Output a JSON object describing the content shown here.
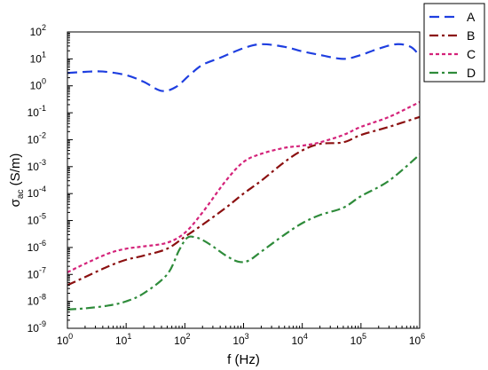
{
  "chart_data": {
    "type": "line",
    "title": "",
    "xlabel": "f (Hz)",
    "ylabel": {
      "base": "σ",
      "sub": "ac",
      "rest": " (S/m)"
    },
    "x_scale": "log",
    "y_scale": "log",
    "xlim": [
      1,
      1000000
    ],
    "ylim": [
      1e-09,
      100
    ],
    "x_ticks": [
      {
        "value": 1,
        "base": "10",
        "exp": "0"
      },
      {
        "value": 10,
        "base": "10",
        "exp": "1"
      },
      {
        "value": 100,
        "base": "10",
        "exp": "2"
      },
      {
        "value": 1000,
        "base": "10",
        "exp": "3"
      },
      {
        "value": 10000,
        "base": "10",
        "exp": "4"
      },
      {
        "value": 100000,
        "base": "10",
        "exp": "5"
      },
      {
        "value": 1000000,
        "base": "10",
        "exp": "6"
      }
    ],
    "y_ticks": [
      {
        "value": 1e-09,
        "base": "10",
        "exp": "-9"
      },
      {
        "value": 1e-08,
        "base": "10",
        "exp": "-8"
      },
      {
        "value": 1e-07,
        "base": "10",
        "exp": "-7"
      },
      {
        "value": 1e-06,
        "base": "10",
        "exp": "-6"
      },
      {
        "value": 1e-05,
        "base": "10",
        "exp": "-5"
      },
      {
        "value": 0.0001,
        "base": "10",
        "exp": "-4"
      },
      {
        "value": 0.001,
        "base": "10",
        "exp": "-3"
      },
      {
        "value": 0.01,
        "base": "10",
        "exp": "-2"
      },
      {
        "value": 0.1,
        "base": "10",
        "exp": "-1"
      },
      {
        "value": 1,
        "base": "10",
        "exp": "0"
      },
      {
        "value": 10,
        "base": "10",
        "exp": "1"
      },
      {
        "value": 100,
        "base": "10",
        "exp": "2"
      }
    ],
    "legend_position": "top-right",
    "grid": false,
    "series": [
      {
        "name": "A",
        "color": "#1f3fe0",
        "dash": "dash",
        "x": [
          1,
          2,
          4,
          10,
          20,
          40,
          70,
          120,
          200,
          400,
          1000,
          2000,
          5000,
          10000,
          20000,
          50000,
          100000,
          200000,
          400000,
          700000,
          1000000
        ],
        "y": [
          3,
          3.3,
          3.4,
          2.5,
          1.4,
          0.65,
          0.9,
          2.5,
          6,
          11,
          25,
          35,
          28,
          19,
          14,
          10,
          14,
          24,
          35,
          28,
          13
        ]
      },
      {
        "name": "B",
        "color": "#8b1010",
        "dash": "dashdot",
        "x": [
          1,
          2,
          5,
          10,
          20,
          50,
          100,
          200,
          500,
          1000,
          2000,
          5000,
          10000,
          20000,
          50000,
          100000,
          300000,
          1000000
        ],
        "y": [
          4e-08,
          8e-08,
          2e-07,
          3.5e-07,
          5e-07,
          9e-07,
          2.5e-06,
          7e-06,
          3e-05,
          0.0001,
          0.0003,
          0.0015,
          0.004,
          0.007,
          0.008,
          0.015,
          0.03,
          0.07
        ]
      },
      {
        "name": "C",
        "color": "#d4237a",
        "dash": "short",
        "x": [
          1,
          2,
          5,
          10,
          20,
          50,
          100,
          200,
          500,
          1000,
          2000,
          5000,
          10000,
          20000,
          50000,
          100000,
          300000,
          1000000
        ],
        "y": [
          1.2e-07,
          2.5e-07,
          6e-07,
          9e-07,
          1.1e-06,
          1.5e-06,
          3.5e-06,
          2e-05,
          0.0003,
          0.0015,
          0.003,
          0.005,
          0.006,
          0.008,
          0.015,
          0.03,
          0.07,
          0.25
        ]
      },
      {
        "name": "D",
        "color": "#2e8b3a",
        "dash": "dashdot",
        "x": [
          1,
          2,
          5,
          10,
          20,
          50,
          80,
          110,
          150,
          200,
          300,
          500,
          800,
          1200,
          2000,
          5000,
          10000,
          20000,
          50000,
          100000,
          300000,
          1000000
        ],
        "y": [
          5e-09,
          5.5e-09,
          7e-09,
          1e-08,
          2e-08,
          1e-07,
          8e-07,
          2.3e-06,
          2.4e-06,
          1.9e-06,
          1.1e-06,
          5e-07,
          3e-07,
          3.2e-07,
          7e-07,
          3e-06,
          8e-06,
          1.6e-05,
          3e-05,
          8e-05,
          0.0003,
          0.0028
        ]
      }
    ]
  }
}
